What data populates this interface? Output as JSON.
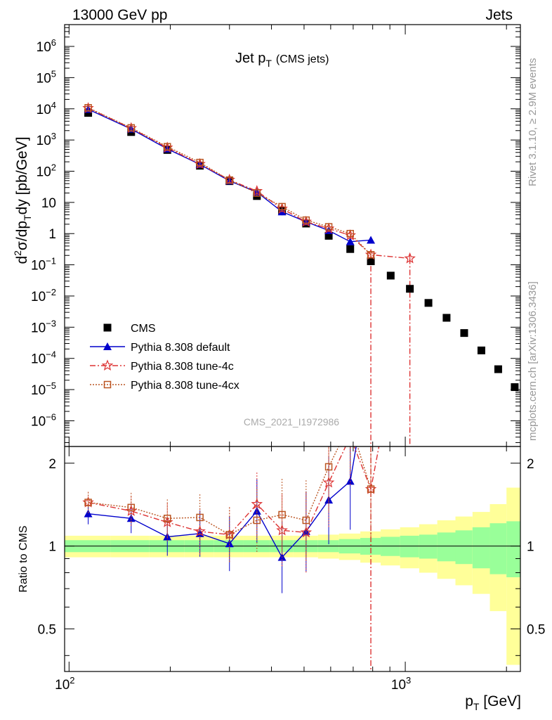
{
  "header": {
    "left": "13000 GeV pp",
    "right": "Jets"
  },
  "plot_title": {
    "main": "Jet p",
    "main_sub": "T",
    "note": "(CMS jets)"
  },
  "y_axis_label": {
    "part1": "d",
    "sup1": "2",
    "part2": "σ/dp",
    "sub1": "T",
    "part3": "dy [pb/GeV]"
  },
  "x_axis_label": {
    "main": "p",
    "sub": "T",
    "unit": " [GeV]"
  },
  "ratio_axis_label": "Ratio to CMS",
  "side_text": {
    "rivet": "Rivet 3.1.10, ≥ 2.9M events",
    "mcplots": "mcplots.cern.ch [arXiv:1306.3436]"
  },
  "analysis_id": "CMS_2021_I1972986",
  "legend": [
    {
      "label": "CMS",
      "marker": "square-filled",
      "color": "#000000",
      "line": "none"
    },
    {
      "label": "Pythia 8.308 default",
      "marker": "triangle-filled",
      "color": "#0000cc",
      "line": "solid"
    },
    {
      "label": "Pythia 8.308 tune-4c",
      "marker": "star-open",
      "color": "#dd3333",
      "line": "dashdot"
    },
    {
      "label": "Pythia 8.308 tune-4cx",
      "marker": "square-open",
      "color": "#bb5522",
      "line": "dotted"
    }
  ],
  "chart_data": {
    "type": "scatter",
    "x_scale": "log",
    "y_scale": "log",
    "xlim": [
      97,
      2200
    ],
    "ylim": [
      1.5e-07,
      5000000.0
    ],
    "ratio_ylim": [
      0.35,
      2.3
    ],
    "ratio_yticks": [
      0.5,
      1,
      2
    ],
    "x_tick_labels": [
      "10^2",
      "10^3"
    ],
    "y_tick_labels": [
      "10^-6",
      "10^-5",
      "10^-4",
      "10^-3",
      "10^-2",
      "10^-1",
      "1",
      "10",
      "10^2",
      "10^3",
      "10^4",
      "10^5",
      "10^6"
    ],
    "series": [
      {
        "name": "CMS",
        "x": [
          114,
          153,
          196,
          245,
          300,
          362,
          430,
          507,
          592,
          686,
          790,
          905,
          1032,
          1172,
          1327,
          1497,
          1684,
          1890,
          2116
        ],
        "y": [
          7400,
          1800,
          480,
          150,
          48,
          16,
          5.5,
          2.1,
          0.85,
          0.32,
          0.13,
          0.045,
          0.017,
          0.006,
          0.002,
          0.00065,
          0.00018,
          4.5e-05,
          1.2e-05
        ]
      },
      {
        "name": "Pythia 8.308 default",
        "x": [
          114,
          153,
          196,
          245,
          300,
          362,
          430,
          507,
          592,
          686,
          790
        ],
        "y": [
          9600,
          2250,
          520,
          165,
          49,
          21.5,
          5.0,
          2.4,
          1.25,
          0.55,
          0.62
        ],
        "ratio": [
          1.31,
          1.26,
          1.08,
          1.11,
          1.02,
          1.34,
          0.91,
          1.13,
          1.47,
          1.72,
          4.7
        ]
      },
      {
        "name": "Pythia 8.308 tune-4c",
        "x": [
          114,
          153,
          196,
          245,
          300,
          362,
          430,
          507,
          592,
          686,
          790,
          1032
        ],
        "y": [
          10500,
          2400,
          570,
          170,
          53,
          23,
          6.3,
          2.4,
          1.45,
          0.88,
          0.21,
          0.16
        ],
        "ratio": [
          1.44,
          1.34,
          1.22,
          1.13,
          1.1,
          1.42,
          1.14,
          1.12,
          1.7,
          2.5,
          1.61,
          9.0
        ]
      },
      {
        "name": "Pythia 8.308 tune-4cx",
        "x": [
          114,
          153,
          196,
          245,
          300,
          362,
          430,
          507,
          592,
          686,
          790
        ],
        "y": [
          10800,
          2450,
          610,
          190,
          52,
          20,
          7.3,
          2.7,
          1.65,
          1.0,
          0.21
        ],
        "ratio": [
          1.44,
          1.38,
          1.26,
          1.27,
          1.1,
          1.24,
          1.3,
          1.24,
          1.94,
          2.8,
          1.61
        ]
      }
    ],
    "ratio_band": {
      "x_edges": [
        97,
        133,
        173,
        220,
        270,
        330,
        395,
        465,
        550,
        635,
        735,
        845,
        965,
        1100,
        1245,
        1410,
        1585,
        1785,
        2000,
        2200
      ],
      "inner_half_width": [
        0.05,
        0.05,
        0.05,
        0.05,
        0.05,
        0.05,
        0.05,
        0.05,
        0.05,
        0.06,
        0.07,
        0.08,
        0.09,
        0.1,
        0.12,
        0.14,
        0.17,
        0.21,
        0.23
      ],
      "outer_half_width": [
        0.09,
        0.09,
        0.09,
        0.09,
        0.09,
        0.09,
        0.09,
        0.09,
        0.1,
        0.11,
        0.13,
        0.15,
        0.17,
        0.2,
        0.24,
        0.28,
        0.33,
        0.42,
        0.63
      ],
      "inner_color": "#99ff99",
      "outer_color": "#ffff99"
    }
  }
}
